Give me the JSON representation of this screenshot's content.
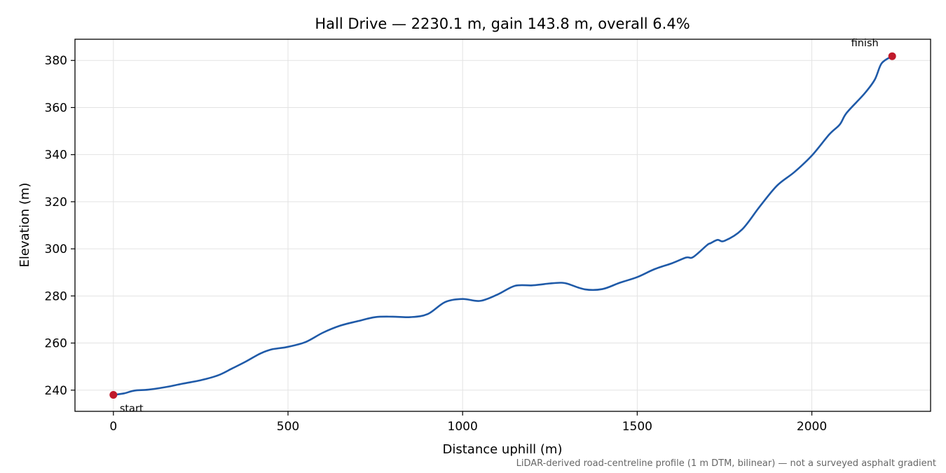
{
  "chart_data": {
    "type": "line",
    "title": "Hall Drive — 2230.1 m, gain 143.8 m, overall 6.4%",
    "xlabel": "Distance uphill (m)",
    "ylabel": "Elevation (m)",
    "xlim": [
      -110,
      2340
    ],
    "ylim": [
      231,
      389
    ],
    "xticks": [
      0,
      500,
      1000,
      1500,
      2000
    ],
    "yticks": [
      240,
      260,
      280,
      300,
      320,
      340,
      360,
      380
    ],
    "grid": true,
    "line_color": "#1f5aa8",
    "marker_color": "#c0192b",
    "series": [
      {
        "x": [
          0,
          30,
          60,
          100,
          150,
          200,
          250,
          300,
          340,
          380,
          420,
          450,
          470,
          500,
          550,
          600,
          650,
          700,
          750,
          800,
          850,
          900,
          950,
          1000,
          1050,
          1100,
          1150,
          1200,
          1250,
          1280,
          1300,
          1350,
          1400,
          1450,
          1500,
          1550,
          1600,
          1640,
          1660,
          1700,
          1710,
          1730,
          1750,
          1800,
          1850,
          1900,
          1950,
          2000,
          2050,
          2080,
          2100,
          2150,
          2180,
          2200,
          2230
        ],
        "y": [
          238,
          238.6,
          239.8,
          240.2,
          241.3,
          242.8,
          244.2,
          246.3,
          249.2,
          252.2,
          255.5,
          257.2,
          257.7,
          258.4,
          260.4,
          264.4,
          267.4,
          269.3,
          271,
          271.2,
          271,
          272.3,
          277.4,
          278.7,
          277.9,
          280.6,
          284.3,
          284.5,
          285.3,
          285.6,
          285.2,
          282.8,
          282.9,
          285.6,
          288,
          291.4,
          293.9,
          296.3,
          296.5,
          301.6,
          302.4,
          303.8,
          303.4,
          308.2,
          317.8,
          326.8,
          332.6,
          339.6,
          348.6,
          352.8,
          357.8,
          365.8,
          371.8,
          378.8,
          381.8
        ]
      }
    ],
    "annotations": [
      {
        "label": "start",
        "x": 0,
        "y": 238
      },
      {
        "label": "finish",
        "x": 2230,
        "y": 381.8
      }
    ],
    "footnote": "LiDAR-derived road-centreline profile (1 m DTM, bilinear) — not a surveyed asphalt gradient"
  }
}
